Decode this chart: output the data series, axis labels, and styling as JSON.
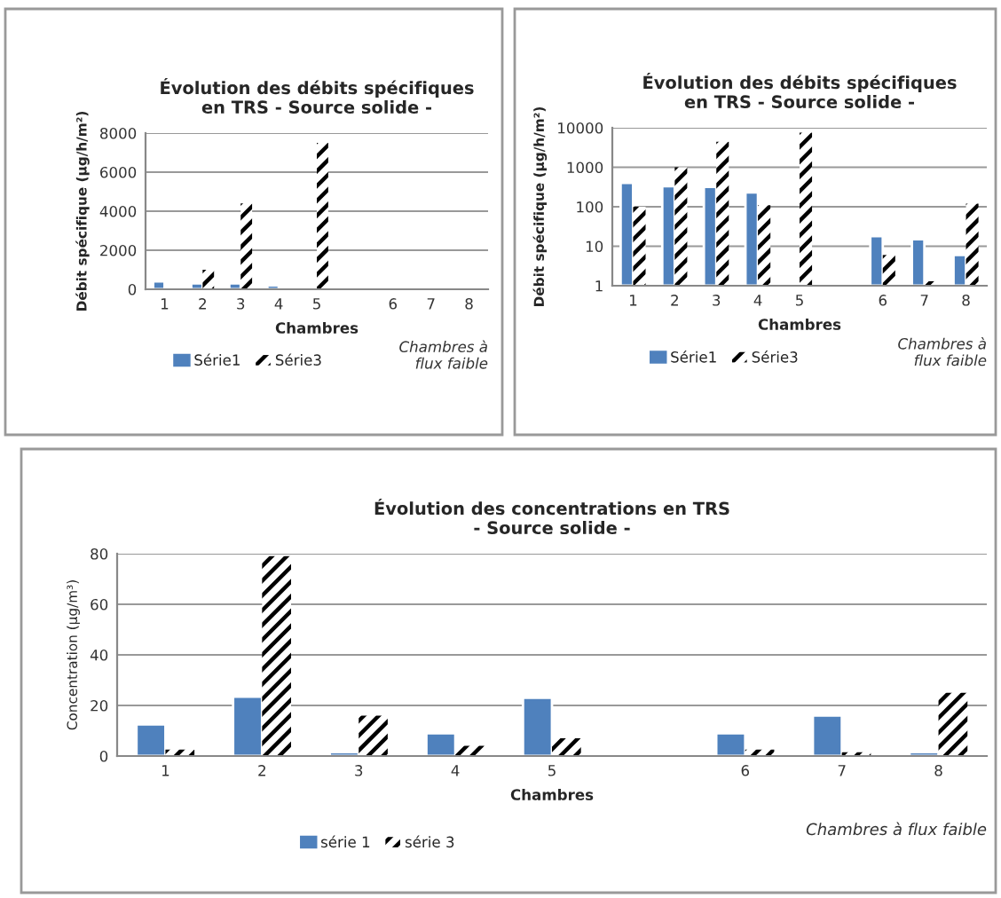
{
  "chart_data": [
    {
      "type": "bar",
      "title": "Évolution des débits spécifiques\nen TRS - Source solide -",
      "xlabel": "Chambres",
      "ylabel": "Débit spécifique (µg/h/m²)",
      "categories": [
        "1",
        "2",
        "3",
        "4",
        "5",
        null,
        "6",
        "7",
        "8"
      ],
      "series": [
        {
          "name": "Série1",
          "color": "#4f81bd",
          "values": [
            400,
            300,
            300,
            200,
            null,
            null,
            null,
            null,
            null
          ]
        },
        {
          "name": "Série3",
          "color": "#000000",
          "values": [
            null,
            1000,
            4400,
            null,
            7500,
            null,
            null,
            null,
            null
          ]
        }
      ],
      "ylim": [
        0,
        8000
      ],
      "yticks": [
        0,
        2000,
        4000,
        6000,
        8000
      ],
      "grid": "y",
      "legend": "bottom",
      "annotations": [
        "Chambres à\nflux faible"
      ]
    },
    {
      "type": "bar",
      "title": "Évolution des débits spécifiques\nen TRS - Source solide -",
      "xlabel": "Chambres",
      "ylabel": "Débit spécifique (µg/h/m²)",
      "categories": [
        "1",
        "2",
        "3",
        "4",
        "5",
        null,
        "6",
        "7",
        "8"
      ],
      "series": [
        {
          "name": "Série1",
          "color": "#4f81bd",
          "values": [
            400,
            330,
            320,
            230,
            null,
            null,
            18,
            15,
            6
          ]
        },
        {
          "name": "Série3",
          "color": "#000000",
          "values": [
            100,
            1000,
            4400,
            110,
            7500,
            null,
            6,
            1.3,
            120
          ]
        }
      ],
      "log": true,
      "ylim": [
        1,
        10000
      ],
      "yticks": [
        1,
        10,
        100,
        1000,
        10000
      ],
      "grid": "y",
      "legend": "bottom",
      "annotations": [
        "Chambres à\nflux faible"
      ]
    },
    {
      "type": "bar",
      "title": "Évolution des concentrations en TRS\n- Source solide -",
      "xlabel": "Chambres",
      "ylabel": "Concentration (µg/m³)",
      "categories": [
        "1",
        "2",
        "3",
        "4",
        "5",
        null,
        "6",
        "7",
        "8"
      ],
      "series": [
        {
          "name": "série 1",
          "color": "#4f81bd",
          "values": [
            12.5,
            23.5,
            1.5,
            9,
            23,
            null,
            9,
            16,
            1.5
          ]
        },
        {
          "name": "série 3",
          "color": "#000000",
          "values": [
            2.5,
            79,
            16,
            4,
            7,
            null,
            2.5,
            1.5,
            25
          ]
        }
      ],
      "ylim": [
        0,
        80
      ],
      "yticks": [
        0,
        20,
        40,
        60,
        80
      ],
      "grid": "y",
      "legend": "bottom",
      "annotations": [
        "Chambres à flux faible"
      ]
    }
  ]
}
